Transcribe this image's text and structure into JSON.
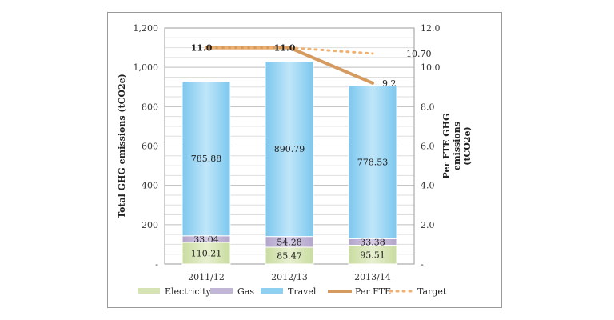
{
  "chart_data": {
    "type": "bar",
    "stacked": true,
    "categories": [
      "2011/12",
      "2012/13",
      "2013/14"
    ],
    "series": [
      {
        "name": "Electricity",
        "values": [
          110.21,
          85.47,
          95.51
        ],
        "color": "#d6e3b4",
        "axis": "left"
      },
      {
        "name": "Gas",
        "values": [
          33.04,
          54.28,
          33.38
        ],
        "color": "#c1b6d5",
        "axis": "left"
      },
      {
        "name": "Travel",
        "values": [
          785.88,
          890.79,
          778.53
        ],
        "color": "#8fcff0",
        "axis": "left"
      }
    ],
    "lines": [
      {
        "name": "Per FTE",
        "values": [
          11.0,
          11.0,
          9.2
        ],
        "labels": [
          "11.0",
          "11.0",
          "9.2"
        ],
        "color": "#d49a5f",
        "style": "solid",
        "axis": "right"
      },
      {
        "name": "Target",
        "values": [
          11.0,
          11.0,
          10.7
        ],
        "labels": [
          "",
          "",
          "10.70"
        ],
        "color": "#f0b070",
        "style": "dotted",
        "axis": "right"
      }
    ],
    "ylabel": "Total GHG emissions (tCO2e)",
    "y2label": [
      "Per FTE GHG",
      "emissions",
      "(tCO2e)"
    ],
    "ylim": [
      0,
      1200
    ],
    "y2lim": [
      0,
      12
    ],
    "yticks": [
      "-",
      "200",
      "400",
      "600",
      "800",
      "1,000",
      "1,200"
    ],
    "y2ticks": [
      "-",
      "2.0",
      "4.0",
      "6.0",
      "8.0",
      "10.0",
      "12.0"
    ],
    "grid": true,
    "legend_position": "bottom",
    "legend": [
      "Electricity",
      "Gas",
      "Travel",
      "Per FTE",
      "Target"
    ]
  }
}
